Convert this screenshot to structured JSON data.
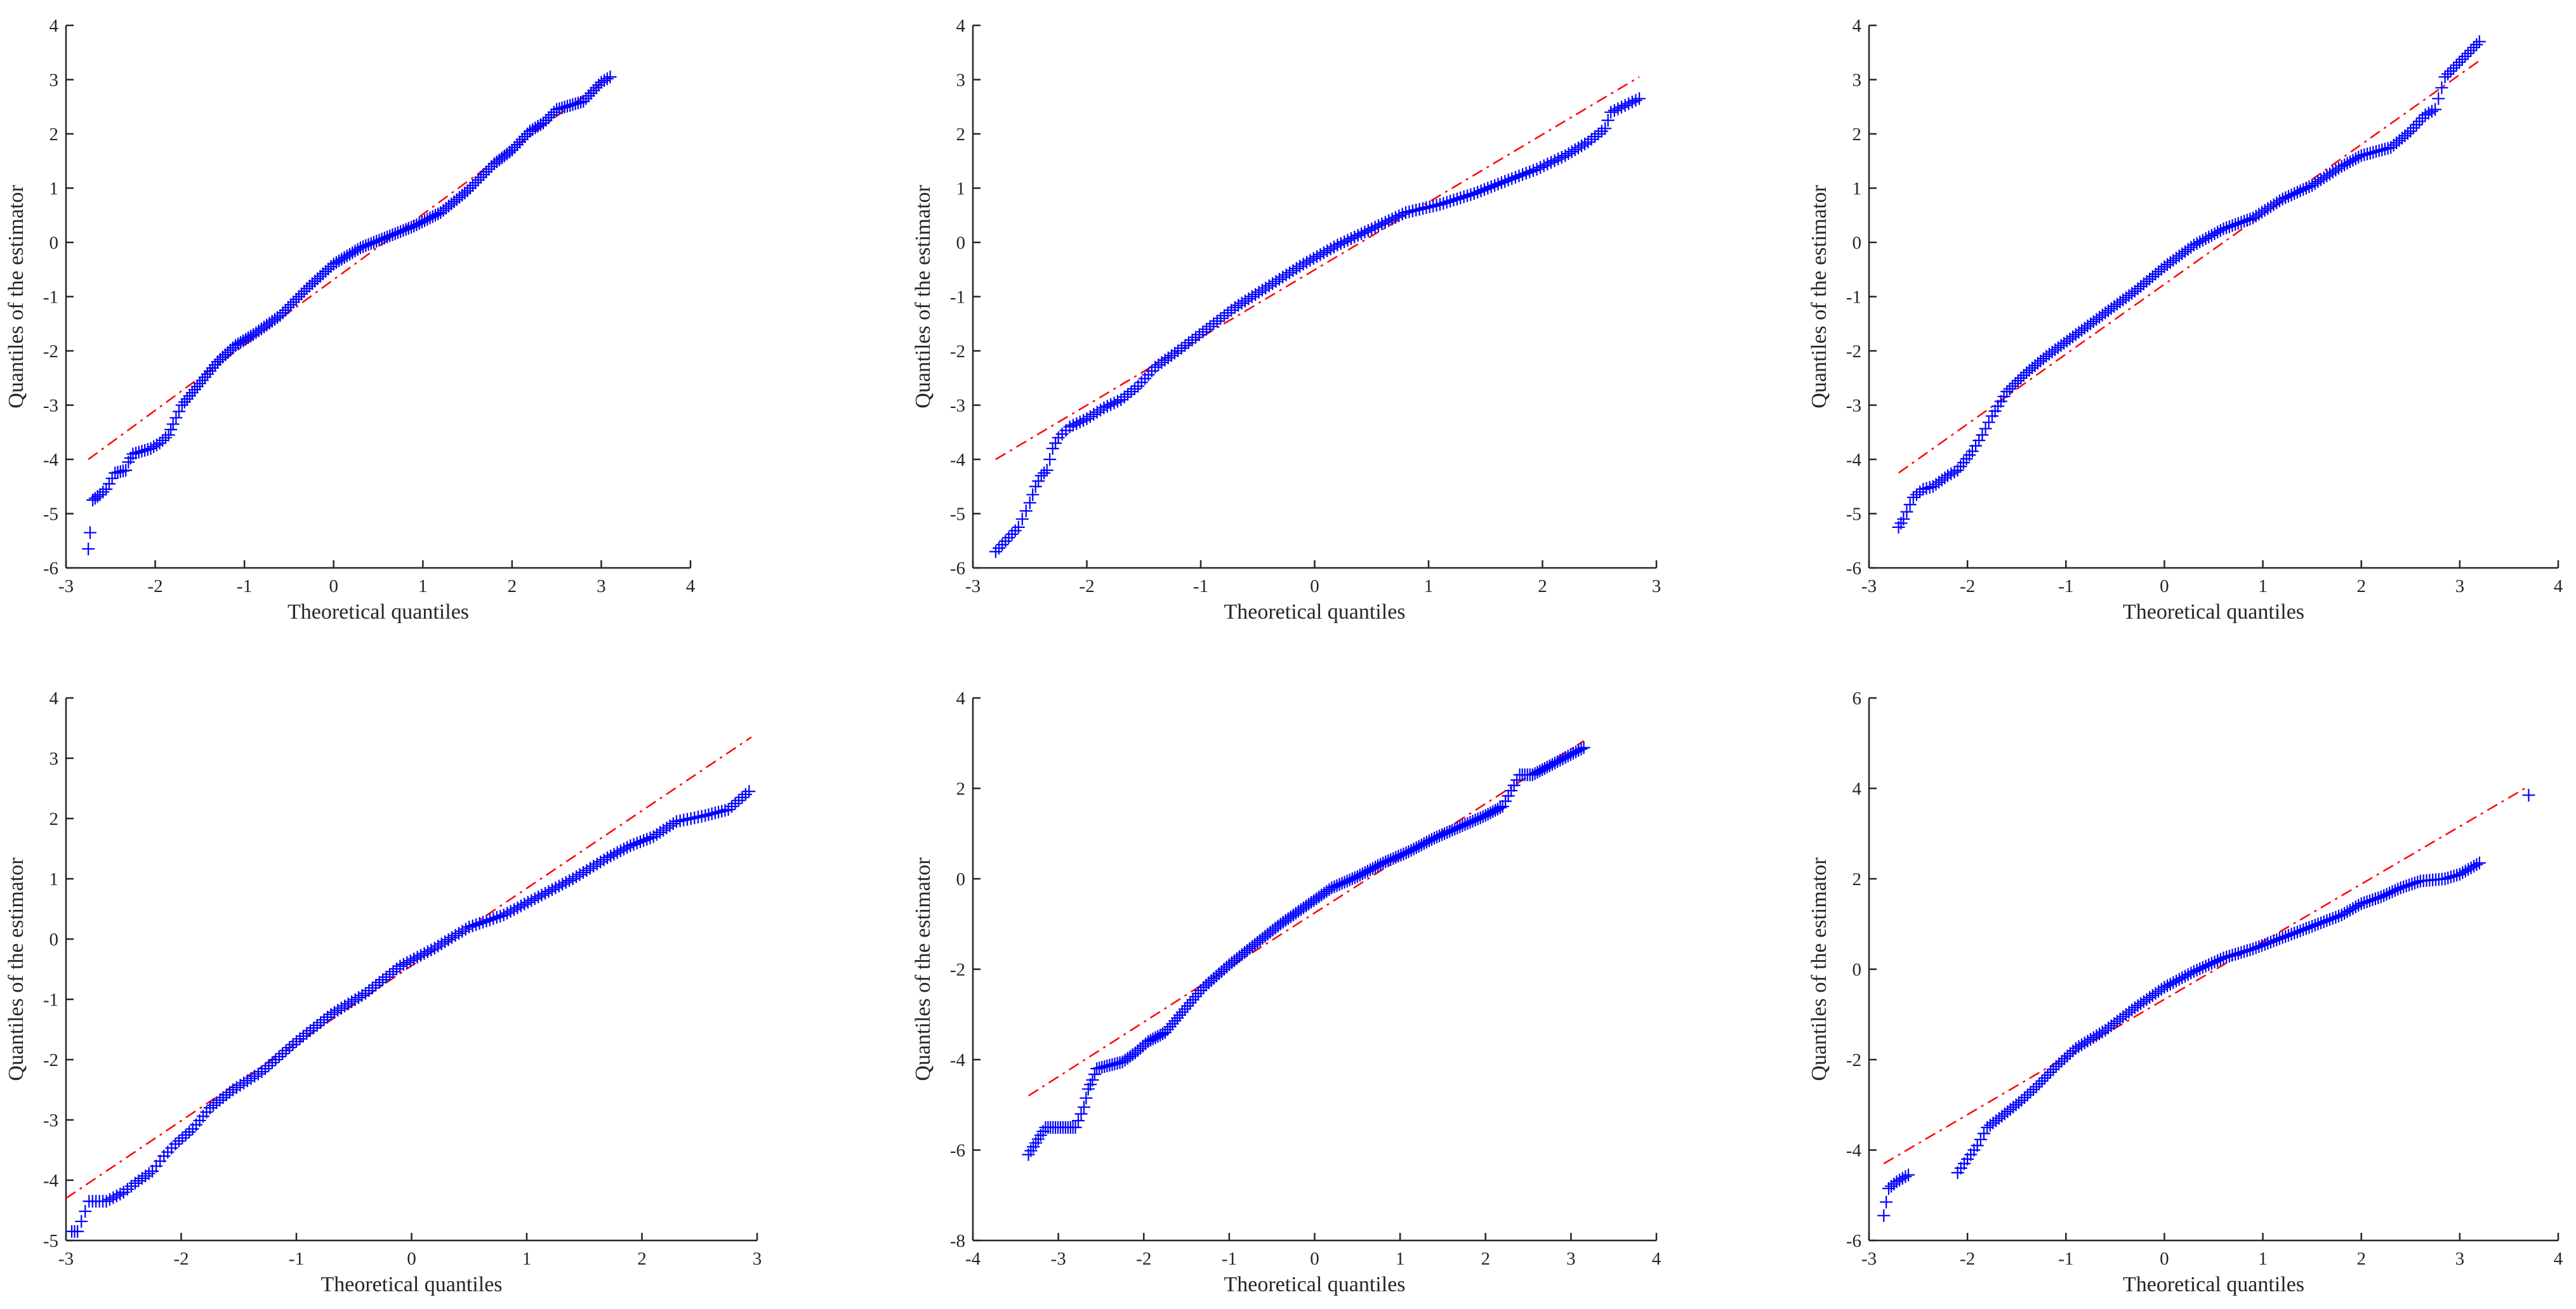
{
  "figure": {
    "rows": 2,
    "cols": 3,
    "marker": "+",
    "marker_color": "#0000ff",
    "ref_line_color": "#ff0000",
    "ref_line_style": "dash-dot",
    "axis_color": "#262626"
  },
  "chart_data": [
    {
      "type": "scatter",
      "title": "",
      "xlabel": "Theoretical quantiles",
      "ylabel": "Quantiles of the estimator",
      "xlim": [
        -3,
        4
      ],
      "ylim": [
        -6,
        4
      ],
      "xticks": [
        -3,
        -2,
        -1,
        0,
        1,
        2,
        3,
        4
      ],
      "yticks": [
        -6,
        -5,
        -4,
        -3,
        -2,
        -1,
        0,
        1,
        2,
        3,
        4
      ],
      "grid": false,
      "reference_line": {
        "x": [
          -2.75,
          3.1
        ],
        "y": [
          -4.0,
          3.05
        ]
      },
      "series": [
        {
          "points": [
            [
              -2.75,
              -5.65
            ],
            [
              -2.73,
              -5.35
            ],
            [
              -2.7,
              -4.75
            ],
            [
              -2.62,
              -4.65
            ],
            [
              -2.55,
              -4.55
            ],
            [
              -2.45,
              -4.25
            ],
            [
              -2.33,
              -4.2
            ],
            [
              -2.3,
              -4.05
            ],
            [
              -2.25,
              -3.9
            ],
            [
              -2.15,
              -3.85
            ],
            [
              -2.05,
              -3.8
            ],
            [
              -1.95,
              -3.7
            ],
            [
              -1.85,
              -3.55
            ],
            [
              -1.8,
              -3.35
            ],
            [
              -1.7,
              -3.0
            ],
            [
              -1.5,
              -2.6
            ],
            [
              -1.3,
              -2.2
            ],
            [
              -1.1,
              -1.9
            ],
            [
              -0.9,
              -1.7
            ],
            [
              -0.6,
              -1.35
            ],
            [
              -0.3,
              -0.85
            ],
            [
              0.0,
              -0.4
            ],
            [
              0.3,
              -0.1
            ],
            [
              0.6,
              0.1
            ],
            [
              0.9,
              0.3
            ],
            [
              1.2,
              0.55
            ],
            [
              1.5,
              0.95
            ],
            [
              1.8,
              1.45
            ],
            [
              2.0,
              1.7
            ],
            [
              2.2,
              2.05
            ],
            [
              2.35,
              2.2
            ],
            [
              2.5,
              2.45
            ],
            [
              2.8,
              2.6
            ],
            [
              3.0,
              2.95
            ],
            [
              3.1,
              3.05
            ]
          ]
        }
      ]
    },
    {
      "type": "scatter",
      "title": "",
      "xlabel": "Theoretical quantiles",
      "ylabel": "Quantiles of the estimator",
      "xlim": [
        -3,
        3
      ],
      "ylim": [
        -6,
        4
      ],
      "xticks": [
        -3,
        -2,
        -1,
        0,
        1,
        2,
        3
      ],
      "yticks": [
        -6,
        -5,
        -4,
        -3,
        -2,
        -1,
        0,
        1,
        2,
        3,
        4
      ],
      "grid": false,
      "reference_line": {
        "x": [
          -2.8,
          2.85
        ],
        "y": [
          -4.0,
          3.05
        ]
      },
      "series": [
        {
          "points": [
            [
              -2.8,
              -5.7
            ],
            [
              -2.6,
              -5.25
            ],
            [
              -2.5,
              -4.8
            ],
            [
              -2.45,
              -4.5
            ],
            [
              -2.4,
              -4.3
            ],
            [
              -2.35,
              -4.2
            ],
            [
              -2.3,
              -3.8
            ],
            [
              -2.25,
              -3.6
            ],
            [
              -2.15,
              -3.4
            ],
            [
              -2.0,
              -3.25
            ],
            [
              -1.85,
              -3.05
            ],
            [
              -1.7,
              -2.9
            ],
            [
              -1.55,
              -2.65
            ],
            [
              -1.4,
              -2.3
            ],
            [
              -1.2,
              -2.0
            ],
            [
              -0.95,
              -1.6
            ],
            [
              -0.7,
              -1.2
            ],
            [
              -0.4,
              -0.8
            ],
            [
              -0.1,
              -0.4
            ],
            [
              0.2,
              -0.05
            ],
            [
              0.5,
              0.25
            ],
            [
              0.8,
              0.55
            ],
            [
              1.1,
              0.7
            ],
            [
              1.4,
              0.9
            ],
            [
              1.7,
              1.15
            ],
            [
              1.95,
              1.35
            ],
            [
              2.2,
              1.6
            ],
            [
              2.4,
              1.85
            ],
            [
              2.55,
              2.1
            ],
            [
              2.6,
              2.4
            ],
            [
              2.85,
              2.65
            ]
          ]
        }
      ]
    },
    {
      "type": "scatter",
      "title": "",
      "xlabel": "Theoretical quantiles",
      "ylabel": "Quantiles of the estimator",
      "xlim": [
        -3,
        4
      ],
      "ylim": [
        -6,
        4
      ],
      "xticks": [
        -3,
        -2,
        -1,
        0,
        1,
        2,
        3,
        4
      ],
      "yticks": [
        -6,
        -5,
        -4,
        -3,
        -2,
        -1,
        0,
        1,
        2,
        3,
        4
      ],
      "grid": false,
      "reference_line": {
        "x": [
          -2.7,
          3.2
        ],
        "y": [
          -4.25,
          3.35
        ]
      },
      "series": [
        {
          "points": [
            [
              -2.7,
              -5.25
            ],
            [
              -2.65,
              -5.1
            ],
            [
              -2.55,
              -4.7
            ],
            [
              -2.45,
              -4.55
            ],
            [
              -2.35,
              -4.5
            ],
            [
              -2.2,
              -4.3
            ],
            [
              -2.1,
              -4.2
            ],
            [
              -1.95,
              -3.85
            ],
            [
              -1.85,
              -3.55
            ],
            [
              -1.75,
              -3.2
            ],
            [
              -1.6,
              -2.75
            ],
            [
              -1.4,
              -2.4
            ],
            [
              -1.2,
              -2.1
            ],
            [
              -0.9,
              -1.7
            ],
            [
              -0.6,
              -1.3
            ],
            [
              -0.3,
              -0.9
            ],
            [
              0.0,
              -0.45
            ],
            [
              0.3,
              -0.05
            ],
            [
              0.6,
              0.25
            ],
            [
              0.9,
              0.45
            ],
            [
              1.2,
              0.8
            ],
            [
              1.5,
              1.05
            ],
            [
              1.8,
              1.4
            ],
            [
              2.0,
              1.6
            ],
            [
              2.3,
              1.75
            ],
            [
              2.5,
              2.05
            ],
            [
              2.65,
              2.35
            ],
            [
              2.75,
              2.45
            ],
            [
              2.85,
              3.05
            ],
            [
              3.2,
              3.7
            ]
          ]
        }
      ]
    },
    {
      "type": "scatter",
      "title": "",
      "xlabel": "Theoretical quantiles",
      "ylabel": "Quantiles of the estimator",
      "xlim": [
        -3,
        3
      ],
      "ylim": [
        -5,
        4
      ],
      "xticks": [
        -3,
        -2,
        -1,
        0,
        1,
        2,
        3
      ],
      "yticks": [
        -5,
        -4,
        -3,
        -2,
        -1,
        0,
        1,
        2,
        3,
        4
      ],
      "grid": false,
      "reference_line": {
        "x": [
          -3.0,
          2.95
        ],
        "y": [
          -4.3,
          3.35
        ]
      },
      "series": [
        {
          "points": [
            [
              -2.95,
              -4.85
            ],
            [
              -2.9,
              -4.85
            ],
            [
              -2.8,
              -4.35
            ],
            [
              -2.65,
              -4.35
            ],
            [
              -2.5,
              -4.2
            ],
            [
              -2.4,
              -4.05
            ],
            [
              -2.25,
              -3.85
            ],
            [
              -2.15,
              -3.6
            ],
            [
              -2.05,
              -3.4
            ],
            [
              -1.9,
              -3.15
            ],
            [
              -1.75,
              -2.8
            ],
            [
              -1.55,
              -2.5
            ],
            [
              -1.3,
              -2.2
            ],
            [
              -1.0,
              -1.7
            ],
            [
              -0.7,
              -1.25
            ],
            [
              -0.4,
              -0.9
            ],
            [
              -0.1,
              -0.45
            ],
            [
              0.2,
              -0.15
            ],
            [
              0.5,
              0.2
            ],
            [
              0.8,
              0.4
            ],
            [
              1.1,
              0.7
            ],
            [
              1.4,
              1.0
            ],
            [
              1.7,
              1.35
            ],
            [
              1.9,
              1.55
            ],
            [
              2.1,
              1.7
            ],
            [
              2.3,
              1.95
            ],
            [
              2.55,
              2.05
            ],
            [
              2.75,
              2.15
            ],
            [
              2.93,
              2.45
            ]
          ]
        }
      ]
    },
    {
      "type": "scatter",
      "title": "",
      "xlabel": "Theoretical quantiles",
      "ylabel": "Quantiles of the estimator",
      "xlim": [
        -4,
        4
      ],
      "ylim": [
        -8,
        4
      ],
      "xticks": [
        -4,
        -3,
        -2,
        -1,
        0,
        1,
        2,
        3,
        4
      ],
      "yticks": [
        -8,
        -6,
        -4,
        -2,
        0,
        2,
        4
      ],
      "grid": false,
      "reference_line": {
        "x": [
          -3.35,
          3.15
        ],
        "y": [
          -4.8,
          3.05
        ]
      },
      "series": [
        {
          "points": [
            [
              -3.35,
              -6.1
            ],
            [
              -3.15,
              -5.5
            ],
            [
              -2.8,
              -5.5
            ],
            [
              -2.7,
              -5.05
            ],
            [
              -2.65,
              -4.65
            ],
            [
              -2.6,
              -4.45
            ],
            [
              -2.55,
              -4.2
            ],
            [
              -2.25,
              -4.05
            ],
            [
              -2.1,
              -3.85
            ],
            [
              -1.95,
              -3.6
            ],
            [
              -1.75,
              -3.4
            ],
            [
              -1.55,
              -2.95
            ],
            [
              -1.3,
              -2.4
            ],
            [
              -1.0,
              -1.9
            ],
            [
              -0.7,
              -1.45
            ],
            [
              -0.4,
              -1.0
            ],
            [
              -0.1,
              -0.6
            ],
            [
              0.2,
              -0.2
            ],
            [
              0.5,
              0.05
            ],
            [
              0.8,
              0.35
            ],
            [
              1.1,
              0.6
            ],
            [
              1.4,
              0.9
            ],
            [
              1.7,
              1.15
            ],
            [
              2.0,
              1.4
            ],
            [
              2.2,
              1.6
            ],
            [
              2.3,
              1.95
            ],
            [
              2.4,
              2.3
            ],
            [
              2.55,
              2.3
            ],
            [
              2.75,
              2.5
            ],
            [
              3.15,
              2.9
            ]
          ]
        }
      ]
    },
    {
      "type": "scatter",
      "title": "",
      "xlabel": "Theoretical quantiles",
      "ylabel": "Quantiles of the estimator",
      "xlim": [
        -3,
        4
      ],
      "ylim": [
        -6,
        6
      ],
      "xticks": [
        -3,
        -2,
        -1,
        0,
        1,
        2,
        3,
        4
      ],
      "yticks": [
        -6,
        -4,
        -2,
        0,
        2,
        4,
        6
      ],
      "grid": false,
      "reference_line": {
        "x": [
          -2.85,
          3.7
        ],
        "y": [
          -4.3,
          4.05
        ]
      },
      "series": [
        {
          "points": [
            [
              -2.85,
              -5.45
            ],
            [
              -2.8,
              -4.85
            ],
            [
              -2.72,
              -4.7
            ],
            [
              -2.6,
              -4.55
            ],
            [
              -2.1,
              -4.5
            ],
            [
              -2.0,
              -4.2
            ],
            [
              -1.9,
              -3.9
            ],
            [
              -1.8,
              -3.5
            ],
            [
              -1.65,
              -3.25
            ],
            [
              -1.45,
              -2.9
            ],
            [
              -1.3,
              -2.6
            ],
            [
              -1.1,
              -2.15
            ],
            [
              -0.9,
              -1.75
            ],
            [
              -0.6,
              -1.35
            ],
            [
              -0.3,
              -0.85
            ],
            [
              0.0,
              -0.4
            ],
            [
              0.3,
              -0.05
            ],
            [
              0.6,
              0.25
            ],
            [
              0.9,
              0.45
            ],
            [
              1.2,
              0.7
            ],
            [
              1.5,
              0.95
            ],
            [
              1.8,
              1.2
            ],
            [
              2.0,
              1.45
            ],
            [
              2.2,
              1.6
            ],
            [
              2.4,
              1.8
            ],
            [
              2.6,
              1.95
            ],
            [
              2.85,
              2.0
            ],
            [
              3.0,
              2.1
            ],
            [
              3.2,
              2.35
            ],
            [
              3.7,
              3.85
            ]
          ]
        }
      ]
    }
  ]
}
